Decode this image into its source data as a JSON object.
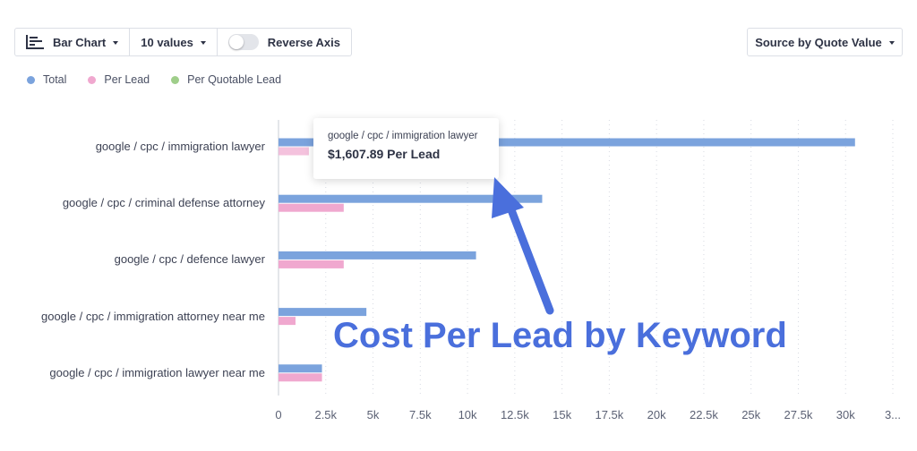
{
  "toolbar": {
    "chart_type_label": "Bar Chart",
    "values_label": "10 values",
    "reverse_axis_label": "Reverse Axis",
    "chart_icon": "bar-chart-icon"
  },
  "source_dropdown": {
    "label": "Source by Quote Value"
  },
  "legend": [
    {
      "label": "Total",
      "color": "#7ba3dd"
    },
    {
      "label": "Per Lead",
      "color": "#f0a8cf"
    },
    {
      "label": "Per Quotable Lead",
      "color": "#9fce8a"
    }
  ],
  "tooltip": {
    "label": "google / cpc / immigration lawyer",
    "value": "$1,607.89 Per Lead"
  },
  "annotation": {
    "text": "Cost Per Lead by Keyword"
  },
  "chart_data": {
    "type": "bar",
    "orientation": "horizontal",
    "categories": [
      "google / cpc / immigration lawyer",
      "google / cpc / criminal defense attorney",
      "google / cpc / defence lawyer",
      "google / cpc / immigration attorney near me",
      "google / cpc / immigration lawyer near me"
    ],
    "series": [
      {
        "name": "Total",
        "color": "#7ba3dd",
        "values": [
          30500,
          13950,
          10450,
          4650,
          2300
        ]
      },
      {
        "name": "Per Lead",
        "color": "#f0a8cf",
        "values": [
          1607.89,
          3450,
          3450,
          900,
          2300
        ]
      },
      {
        "name": "Per Quotable Lead",
        "color": "#9fce8a",
        "values": [
          0,
          0,
          0,
          0,
          0
        ]
      }
    ],
    "xticks": [
      "0",
      "2.5k",
      "5k",
      "7.5k",
      "10k",
      "12.5k",
      "15k",
      "17.5k",
      "20k",
      "22.5k",
      "25k",
      "27.5k",
      "30k",
      "3..."
    ],
    "xlim": [
      0,
      32500
    ],
    "grid": "vertical-dotted",
    "legend_position": "top-left"
  }
}
